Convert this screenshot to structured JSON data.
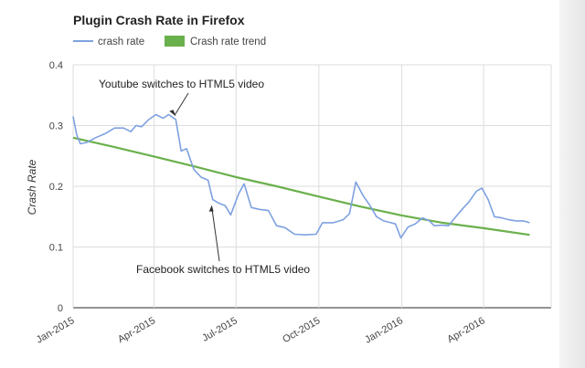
{
  "chart_data": {
    "type": "line",
    "title": "Plugin Crash Rate in Firefox",
    "ylabel": "Crash Rate",
    "xlabel": "",
    "ylim": [
      0,
      0.4
    ],
    "y_ticks": [
      0,
      0.1,
      0.2,
      0.3,
      0.4
    ],
    "y_tick_labels": [
      "0",
      "0.1",
      "0.2",
      "0.3",
      "0.4"
    ],
    "x_domain": [
      "2015-01-01",
      "2016-06-15"
    ],
    "x_ticks": [
      {
        "date": "2015-01-01",
        "label": "Jan-2015"
      },
      {
        "date": "2015-04-01",
        "label": "Apr-2015"
      },
      {
        "date": "2015-07-01",
        "label": "Jul-2015"
      },
      {
        "date": "2015-10-01",
        "label": "Oct-2015"
      },
      {
        "date": "2016-01-01",
        "label": "Jan-2016"
      },
      {
        "date": "2016-04-01",
        "label": "Apr-2016"
      }
    ],
    "grid": true,
    "legend_position": "top-left",
    "series": [
      {
        "name": "crash rate",
        "color": "#7ea1e0",
        "points": [
          [
            "2015-01-01",
            0.315
          ],
          [
            "2015-01-05",
            0.285
          ],
          [
            "2015-01-09",
            0.27
          ],
          [
            "2015-01-16",
            0.272
          ],
          [
            "2015-01-26",
            0.28
          ],
          [
            "2015-02-06",
            0.287
          ],
          [
            "2015-02-16",
            0.296
          ],
          [
            "2015-02-26",
            0.296
          ],
          [
            "2015-03-06",
            0.29
          ],
          [
            "2015-03-12",
            0.3
          ],
          [
            "2015-03-18",
            0.298
          ],
          [
            "2015-03-26",
            0.31
          ],
          [
            "2015-04-03",
            0.318
          ],
          [
            "2015-04-11",
            0.312
          ],
          [
            "2015-04-17",
            0.318
          ],
          [
            "2015-04-25",
            0.31
          ],
          [
            "2015-05-01",
            0.258
          ],
          [
            "2015-05-07",
            0.262
          ],
          [
            "2015-05-15",
            0.228
          ],
          [
            "2015-05-23",
            0.215
          ],
          [
            "2015-05-31",
            0.21
          ],
          [
            "2015-06-05",
            0.178
          ],
          [
            "2015-06-12",
            0.172
          ],
          [
            "2015-06-19",
            0.168
          ],
          [
            "2015-06-25",
            0.153
          ],
          [
            "2015-07-04",
            0.188
          ],
          [
            "2015-07-10",
            0.204
          ],
          [
            "2015-07-18",
            0.165
          ],
          [
            "2015-07-27",
            0.162
          ],
          [
            "2015-08-06",
            0.16
          ],
          [
            "2015-08-15",
            0.135
          ],
          [
            "2015-08-24",
            0.132
          ],
          [
            "2015-09-04",
            0.121
          ],
          [
            "2015-09-15",
            0.12
          ],
          [
            "2015-09-28",
            0.121
          ],
          [
            "2015-10-05",
            0.14
          ],
          [
            "2015-10-17",
            0.14
          ],
          [
            "2015-10-28",
            0.145
          ],
          [
            "2015-11-04",
            0.155
          ],
          [
            "2015-11-11",
            0.207
          ],
          [
            "2015-11-19",
            0.185
          ],
          [
            "2015-11-26",
            0.17
          ],
          [
            "2015-12-04",
            0.15
          ],
          [
            "2015-12-12",
            0.143
          ],
          [
            "2015-12-20",
            0.14
          ],
          [
            "2015-12-25",
            0.138
          ],
          [
            "2015-12-31",
            0.115
          ],
          [
            "2016-01-08",
            0.133
          ],
          [
            "2016-01-16",
            0.138
          ],
          [
            "2016-01-24",
            0.148
          ],
          [
            "2016-02-01",
            0.143
          ],
          [
            "2016-02-06",
            0.135
          ],
          [
            "2016-02-14",
            0.136
          ],
          [
            "2016-02-22",
            0.135
          ],
          [
            "2016-02-29",
            0.148
          ],
          [
            "2016-03-08",
            0.162
          ],
          [
            "2016-03-16",
            0.175
          ],
          [
            "2016-03-24",
            0.192
          ],
          [
            "2016-03-30",
            0.197
          ],
          [
            "2016-04-06",
            0.178
          ],
          [
            "2016-04-13",
            0.15
          ],
          [
            "2016-04-21",
            0.148
          ],
          [
            "2016-04-29",
            0.145
          ],
          [
            "2016-05-07",
            0.143
          ],
          [
            "2016-05-15",
            0.143
          ],
          [
            "2016-05-22",
            0.14
          ]
        ]
      },
      {
        "name": "Crash rate trend",
        "color": "#6ab04c",
        "points": [
          [
            "2015-01-01",
            0.28
          ],
          [
            "2015-02-15",
            0.265
          ],
          [
            "2015-04-01",
            0.249
          ],
          [
            "2015-05-15",
            0.233
          ],
          [
            "2015-07-01",
            0.215
          ],
          [
            "2015-08-15",
            0.2
          ],
          [
            "2015-10-01",
            0.183
          ],
          [
            "2015-11-15",
            0.167
          ],
          [
            "2016-01-01",
            0.152
          ],
          [
            "2016-02-15",
            0.14
          ],
          [
            "2016-04-01",
            0.131
          ],
          [
            "2016-05-22",
            0.12
          ]
        ]
      }
    ],
    "annotations": [
      {
        "text": "Youtube switches to HTML5 video",
        "date": "2015-04-25",
        "value": 0.31
      },
      {
        "text": "Facebook switches to HTML5 video",
        "date": "2015-06-05",
        "value": 0.178
      }
    ]
  }
}
